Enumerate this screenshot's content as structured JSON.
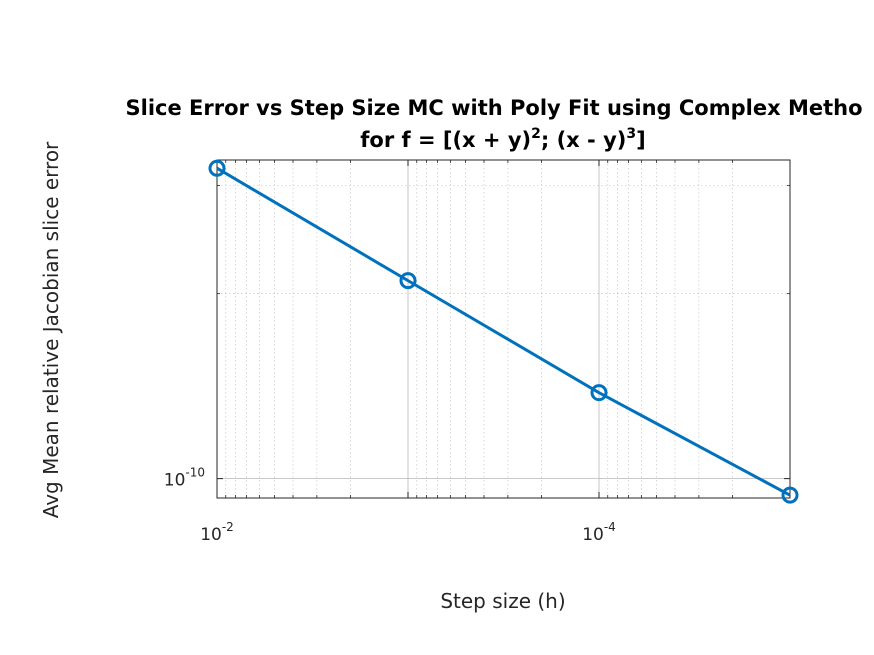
{
  "chart_data": {
    "type": "line",
    "title_line1": "Slice Error vs Step Size MC with Poly Fit using Complex Metho",
    "title_line2": {
      "prefix": "for f = [(x + y)",
      "sup1": "2",
      "middle": "; (x - y)",
      "sup2": "3",
      "suffix": "]"
    },
    "xlabel": "Step size (h)",
    "ylabel": "Avg Mean relative Jacobian slice error",
    "x_scale": "log",
    "y_scale": "log",
    "x_direction": "reverse",
    "xlim": [
      0.01,
      1e-05
    ],
    "ylim": [
      9.3e-11,
      3.3e-10
    ],
    "x_ticks": [
      {
        "value": 0.01,
        "base": "10",
        "exp": "-2"
      },
      {
        "value": 0.0001,
        "base": "10",
        "exp": "-4"
      }
    ],
    "y_ticks": [
      {
        "value": 1e-10,
        "base": "10",
        "exp": "-10"
      }
    ],
    "grid": true,
    "minor_grid": true,
    "marker": "circle",
    "line_color": "#0072BD",
    "series": [
      {
        "x": [
          0.01,
          0.001,
          0.0001,
          1e-05
        ],
        "y": [
          3.2e-10,
          2.1e-10,
          1.38e-10,
          9.4e-11
        ]
      }
    ]
  }
}
